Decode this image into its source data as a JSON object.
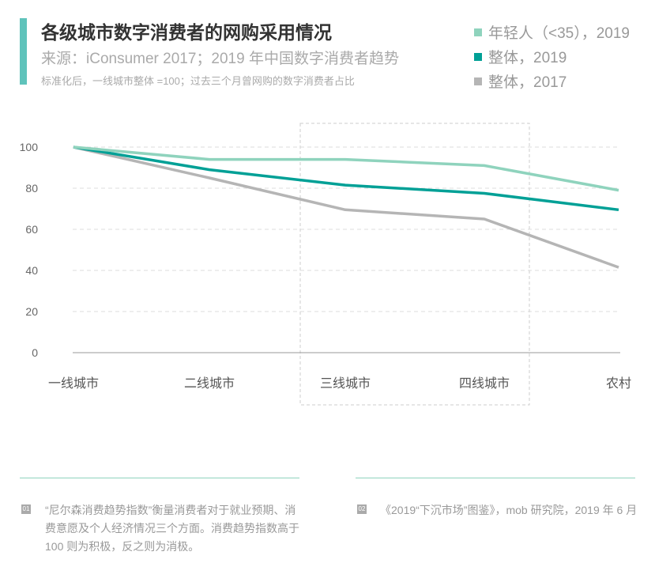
{
  "header": {
    "title": "各级城市数字消费者的网购采用情况",
    "source": "来源：iConsumer 2017；2019 年中国数字消费者趋势",
    "note": "标准化后，一线城市整体 =100；过去三个月曾网购的数字消费者占比"
  },
  "chart_data": {
    "type": "line",
    "title": "各级城市数字消费者的网购采用情况",
    "xlabel": "",
    "ylabel": "",
    "ylim": [
      0,
      100
    ],
    "yticks": [
      "0",
      "20",
      "40",
      "60",
      "80",
      "100"
    ],
    "categories": [
      "一线城市",
      "二线城市",
      "三线城市",
      "四线城市",
      "农村"
    ],
    "grid": "horizontal-dashed",
    "legend_position": "top-right",
    "highlight": "三线城市–四线城市 dashed box",
    "series": [
      {
        "name": "年轻人（<35），2019",
        "color": "#8fd3bd",
        "values": [
          100,
          94,
          94,
          91,
          79
        ]
      },
      {
        "name": "整体，2019",
        "color": "#00a096",
        "values": [
          100,
          89,
          81.5,
          77.5,
          69.5
        ]
      },
      {
        "name": "整体，2017",
        "color": "#b5b5b5",
        "values": [
          100,
          85,
          69.5,
          65,
          41.5
        ]
      }
    ]
  },
  "footnotes": [
    {
      "num": "01",
      "text": "“尼尔森消费趋势指数”衡量消费者对于就业预期、消费意愿及个人经济情况三个方面。消费趋势指数高于 100 则为积极，反之则为消极。"
    },
    {
      "num": "02",
      "text": "《2019“下沉市场”图鉴》，mob 研究院，2019 年 6 月"
    }
  ]
}
